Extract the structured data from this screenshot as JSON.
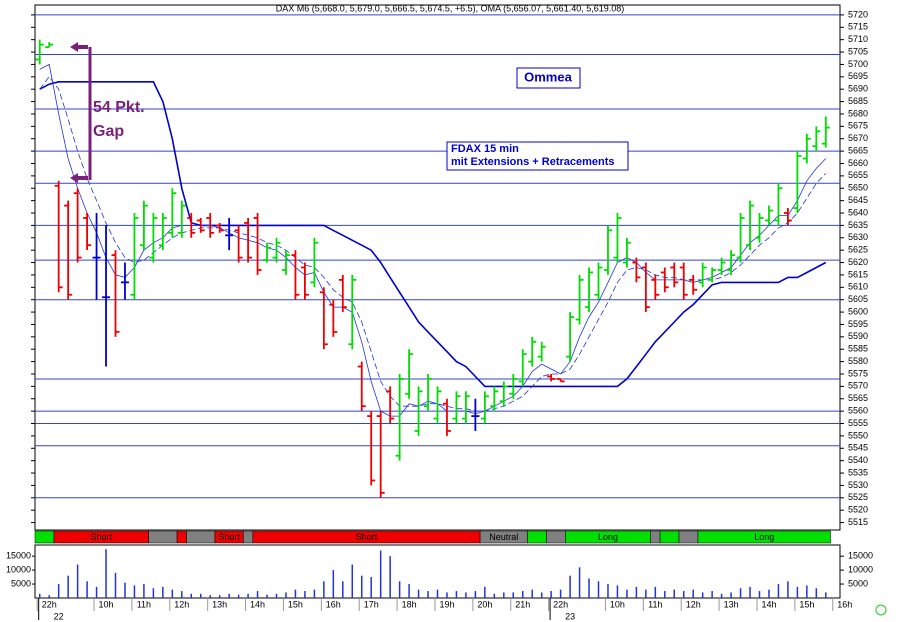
{
  "chart_data": {
    "type": "ohlc",
    "title": "DAX M6 (5,668.0, 5,679.0, 5,666.5, 5,674.5, +6.5), OMA (5,656.07, 5,661.40, 5,619.08)",
    "annotations": [
      "Ommea",
      "54 Pkt.",
      "Gap",
      "FDAX 15 min",
      "mit Extensions + Retracements"
    ],
    "up_color": "#00dd00",
    "down_color": "#ee0000",
    "flat_color": "#0000cc",
    "xlim": [
      -0.5,
      84.5
    ],
    "ylim": [
      5512,
      5724
    ],
    "yticks": [
      5515,
      5520,
      5525,
      5530,
      5535,
      5540,
      5545,
      5550,
      5555,
      5560,
      5565,
      5570,
      5575,
      5580,
      5585,
      5590,
      5595,
      5600,
      5605,
      5610,
      5615,
      5620,
      5625,
      5630,
      5635,
      5640,
      5645,
      5650,
      5655,
      5660,
      5665,
      5670,
      5675,
      5680,
      5685,
      5690,
      5695,
      5700,
      5705,
      5710,
      5715,
      5720
    ],
    "levels": [
      5720,
      5704,
      5682,
      5665,
      5652,
      5635,
      5621,
      5605,
      5573,
      5560,
      5555,
      5546,
      5525
    ],
    "level_color": "#3344cc",
    "open": [
      5702,
      5707,
      5651,
      5643,
      5648,
      5638,
      5622,
      5606,
      5623,
      5612,
      5607,
      5627,
      5622,
      5627,
      5632,
      5632,
      5638,
      5637,
      5638,
      5635,
      5631,
      5633,
      5636,
      5638,
      5621,
      5622,
      5617,
      5623,
      5618,
      5612,
      5608,
      5603,
      5613,
      5587,
      5578,
      5558,
      5558,
      5568,
      5542,
      5567,
      5552,
      5562,
      5557,
      5563,
      5557,
      5557,
      5558,
      5557,
      5562,
      5564,
      5567,
      5572,
      5580,
      5582,
      5574,
      5573,
      5582,
      5597,
      5602,
      5607,
      5617,
      5622,
      5620,
      5620,
      5618,
      5613,
      5616,
      5618,
      5618,
      5613,
      5612,
      5613,
      5617,
      5617,
      5622,
      5627,
      5630,
      5637,
      5637,
      5640,
      5642,
      5662,
      5667,
      5668
    ],
    "high": [
      5710,
      5709,
      5653,
      5645,
      5650,
      5640,
      5640,
      5635,
      5625,
      5620,
      5640,
      5645,
      5640,
      5640,
      5650,
      5645,
      5640,
      5638,
      5640,
      5636,
      5638,
      5635,
      5638,
      5640,
      5628,
      5630,
      5625,
      5625,
      5620,
      5630,
      5610,
      5605,
      5615,
      5615,
      5580,
      5560,
      5560,
      5570,
      5575,
      5585,
      5570,
      5575,
      5570,
      5565,
      5568,
      5568,
      5565,
      5568,
      5570,
      5572,
      5575,
      5585,
      5590,
      5588,
      5575,
      5573,
      5600,
      5615,
      5618,
      5620,
      5635,
      5640,
      5630,
      5622,
      5620,
      5615,
      5618,
      5620,
      5620,
      5615,
      5620,
      5618,
      5622,
      5625,
      5640,
      5645,
      5640,
      5643,
      5652,
      5642,
      5665,
      5672,
      5675,
      5679
    ],
    "low": [
      5700,
      5707,
      5608,
      5605,
      5620,
      5625,
      5605,
      5578,
      5590,
      5605,
      5605,
      5625,
      5620,
      5625,
      5630,
      5630,
      5630,
      5632,
      5630,
      5632,
      5625,
      5620,
      5620,
      5615,
      5620,
      5620,
      5615,
      5605,
      5605,
      5610,
      5585,
      5590,
      5600,
      5585,
      5560,
      5530,
      5525,
      5555,
      5540,
      5565,
      5550,
      5560,
      5555,
      5550,
      5555,
      5555,
      5552,
      5555,
      5560,
      5562,
      5565,
      5570,
      5578,
      5580,
      5572,
      5572,
      5580,
      5595,
      5600,
      5605,
      5615,
      5620,
      5618,
      5612,
      5600,
      5605,
      5608,
      5610,
      5605,
      5607,
      5610,
      5612,
      5615,
      5615,
      5620,
      5625,
      5628,
      5635,
      5635,
      5635,
      5640,
      5660,
      5665,
      5666.5
    ],
    "close": [
      5708,
      5708,
      5610,
      5607,
      5622,
      5627,
      5622,
      5606,
      5592,
      5612,
      5638,
      5643,
      5638,
      5638,
      5648,
      5643,
      5632,
      5633,
      5632,
      5633,
      5631,
      5622,
      5622,
      5617,
      5626,
      5628,
      5623,
      5607,
      5607,
      5628,
      5587,
      5592,
      5602,
      5613,
      5562,
      5532,
      5527,
      5557,
      5573,
      5583,
      5568,
      5573,
      5568,
      5552,
      5566,
      5566,
      5558,
      5566,
      5568,
      5570,
      5573,
      5583,
      5588,
      5586,
      5573,
      5572,
      5598,
      5613,
      5616,
      5618,
      5633,
      5638,
      5628,
      5614,
      5602,
      5607,
      5610,
      5612,
      5607,
      5609,
      5618,
      5617,
      5620,
      5623,
      5638,
      5643,
      5638,
      5641,
      5650,
      5637,
      5663,
      5670,
      5673,
      5674.5
    ],
    "lines": [
      {
        "color": "#0000cc",
        "style": "solid",
        "weight": 1.6,
        "values": [
          5690,
          5692,
          5693,
          5693,
          5693,
          5693,
          5693,
          5693,
          5693,
          5693,
          5693,
          5693,
          5693,
          5685,
          5670,
          5650,
          5636,
          5635,
          5635,
          5635,
          5635,
          5635,
          5635,
          5635,
          5635,
          5635,
          5635,
          5635,
          5635,
          5635,
          5635,
          5633,
          5631,
          5629,
          5627,
          5625,
          5620,
          5614,
          5608,
          5602,
          5596,
          5592,
          5588,
          5584,
          5580,
          5578,
          5574,
          5570,
          5570,
          5570,
          5570,
          5570,
          5570,
          5570,
          5570,
          5570,
          5570,
          5570,
          5570,
          5570,
          5570,
          5570,
          5573,
          5578,
          5583,
          5588,
          5592,
          5596,
          5600,
          5603,
          5607,
          5611,
          5612,
          5612,
          5612,
          5612,
          5612,
          5612,
          5612,
          5614,
          5614,
          5616,
          5618,
          5620
        ]
      },
      {
        "color": "#2233dd",
        "style": "solid",
        "weight": 0.8,
        "values": [
          5698,
          5700,
          5680,
          5662,
          5650,
          5640,
          5632,
          5622,
          5615,
          5614,
          5618,
          5625,
          5628,
          5630,
          5634,
          5635,
          5635,
          5635,
          5635,
          5634,
          5632,
          5630,
          5629,
          5628,
          5626,
          5625,
          5622,
          5618,
          5615,
          5616,
          5608,
          5602,
          5602,
          5600,
          5588,
          5572,
          5560,
          5558,
          5558,
          5563,
          5562,
          5564,
          5563,
          5560,
          5560,
          5560,
          5559,
          5560,
          5562,
          5564,
          5566,
          5570,
          5576,
          5579,
          5577,
          5575,
          5580,
          5590,
          5598,
          5604,
          5612,
          5620,
          5622,
          5620,
          5616,
          5613,
          5613,
          5613,
          5613,
          5612,
          5613,
          5614,
          5616,
          5618,
          5623,
          5628,
          5631,
          5635,
          5639,
          5639,
          5645,
          5653,
          5658,
          5662
        ]
      },
      {
        "color": "#2233dd",
        "style": "dashed",
        "weight": 0.8,
        "values": [
          5690,
          5695,
          5690,
          5678,
          5665,
          5654,
          5645,
          5636,
          5628,
          5622,
          5620,
          5621,
          5624,
          5627,
          5630,
          5632,
          5633,
          5634,
          5634,
          5634,
          5633,
          5632,
          5631,
          5630,
          5628,
          5627,
          5625,
          5622,
          5619,
          5618,
          5614,
          5609,
          5606,
          5604,
          5596,
          5584,
          5572,
          5566,
          5562,
          5562,
          5562,
          5563,
          5563,
          5562,
          5561,
          5561,
          5560,
          5560,
          5561,
          5562,
          5564,
          5566,
          5570,
          5574,
          5575,
          5575,
          5577,
          5583,
          5590,
          5597,
          5604,
          5612,
          5617,
          5618,
          5617,
          5615,
          5614,
          5614,
          5613,
          5613,
          5613,
          5613,
          5614,
          5616,
          5619,
          5623,
          5627,
          5630,
          5634,
          5636,
          5640,
          5646,
          5652,
          5656
        ]
      }
    ],
    "signal_colors": {
      "long": "#00e000",
      "short": "#ee0000",
      "neutral": "#808080"
    },
    "signals": [
      {
        "state": "long",
        "from": 0,
        "to": 2
      },
      {
        "state": "short",
        "from": 2,
        "to": 12,
        "label": "Short"
      },
      {
        "state": "neutral",
        "from": 12,
        "to": 15
      },
      {
        "state": "short",
        "from": 15,
        "to": 16
      },
      {
        "state": "neutral",
        "from": 16,
        "to": 19
      },
      {
        "state": "short",
        "from": 19,
        "to": 22,
        "label": "Short"
      },
      {
        "state": "neutral",
        "from": 22,
        "to": 23
      },
      {
        "state": "short",
        "from": 23,
        "to": 47,
        "label": "Short"
      },
      {
        "state": "neutral",
        "from": 47,
        "to": 52,
        "label": "Neutral"
      },
      {
        "state": "long",
        "from": 52,
        "to": 54
      },
      {
        "state": "neutral",
        "from": 54,
        "to": 56
      },
      {
        "state": "long",
        "from": 56,
        "to": 65,
        "label": "Long"
      },
      {
        "state": "neutral",
        "from": 65,
        "to": 66
      },
      {
        "state": "long",
        "from": 66,
        "to": 68
      },
      {
        "state": "neutral",
        "from": 68,
        "to": 70
      },
      {
        "state": "long",
        "from": 70,
        "to": 84,
        "label": "Long"
      }
    ],
    "volume_color": "#2233dd",
    "volume": [
      1500,
      1000,
      5000,
      8000,
      12000,
      6000,
      4000,
      17500,
      9000,
      5500,
      4500,
      5000,
      3500,
      4000,
      3000,
      2500,
      1500,
      1500,
      1000,
      1000,
      1500,
      1200,
      1500,
      2500,
      1200,
      1500,
      2000,
      3000,
      2500,
      3000,
      6000,
      10000,
      6000,
      12000,
      8000,
      7500,
      17000,
      15000,
      6000,
      5000,
      3000,
      2500,
      3000,
      2000,
      2500,
      2000,
      2500,
      4000,
      1500,
      2000,
      2000,
      2500,
      3000,
      2000,
      2500,
      3000,
      8000,
      11000,
      7000,
      6000,
      5000,
      4500,
      3000,
      4000,
      3000,
      4000,
      2500,
      3000,
      2500,
      3000,
      2000,
      2500,
      1500,
      2000,
      3500,
      4000,
      2500,
      3000,
      5000,
      6000,
      4000,
      4500,
      3500,
      2000
    ],
    "volume_lim": [
      0,
      19000
    ],
    "volume_ticks": [
      5000,
      10000,
      15000
    ],
    "xticks": [
      {
        "value": 1,
        "label": "22h"
      },
      {
        "value": 7,
        "label": "10h"
      },
      {
        "value": 11,
        "label": "11h"
      },
      {
        "value": 15,
        "label": "12h"
      },
      {
        "value": 19,
        "label": "13h"
      },
      {
        "value": 23,
        "label": "14h"
      },
      {
        "value": 27,
        "label": "15h"
      },
      {
        "value": 31,
        "label": "16h"
      },
      {
        "value": 35,
        "label": "17h"
      },
      {
        "value": 39,
        "label": "18h"
      },
      {
        "value": 43,
        "label": "19h"
      },
      {
        "value": 47,
        "label": "20h"
      },
      {
        "value": 51,
        "label": "21h"
      },
      {
        "value": 55,
        "label": "22h"
      },
      {
        "value": 61,
        "label": "10h"
      },
      {
        "value": 65,
        "label": "11h"
      },
      {
        "value": 69,
        "label": "12h"
      },
      {
        "value": 73,
        "label": "13h"
      },
      {
        "value": 77,
        "label": "14h"
      },
      {
        "value": 81,
        "label": "15h"
      },
      {
        "value": 85,
        "label": "16h"
      }
    ],
    "date_ticks": [
      {
        "value": 2,
        "label": "22"
      },
      {
        "value": 56,
        "label": "23"
      }
    ]
  }
}
